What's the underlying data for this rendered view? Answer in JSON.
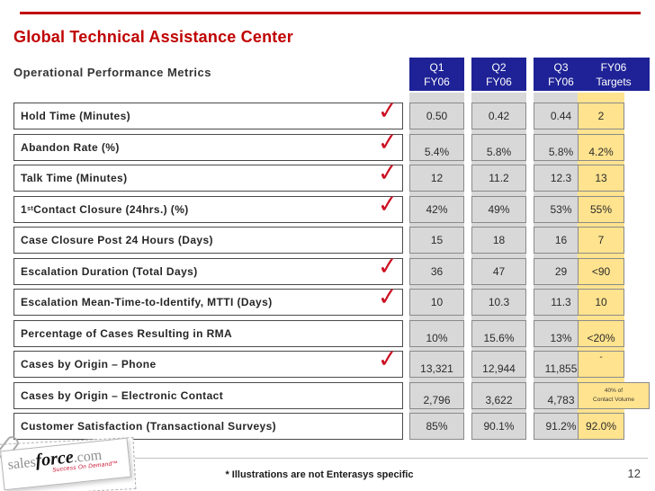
{
  "slide": {
    "title": "Global Technical Assistance Center",
    "table_title": "Operational Performance Metrics"
  },
  "table": {
    "check_glyph": "✓",
    "columns": [
      {
        "line1": "Q1",
        "line2": "FY06"
      },
      {
        "line1": "Q2",
        "line2": "FY06"
      },
      {
        "line1": "Q3",
        "line2": "FY06"
      },
      {
        "line1": "FY06",
        "line2": "Targets"
      }
    ],
    "rows": [
      {
        "label": "Hold Time (Minutes)",
        "checked": true,
        "values": [
          "0.50",
          "0.42",
          "0.44",
          "2"
        ]
      },
      {
        "label": "Abandon Rate (%)",
        "checked": true,
        "valign": "bottom",
        "values": [
          "5.4%",
          "5.8%",
          "5.8%",
          "4.2%"
        ]
      },
      {
        "label": "Talk Time (Minutes)",
        "checked": true,
        "values": [
          "12",
          "11.2",
          "12.3",
          "13"
        ]
      },
      {
        "label_pre": "1",
        "label_sup": "st",
        "label_post": " Contact Closure (24hrs.) (%)",
        "checked": true,
        "values": [
          "42%",
          "49%",
          "53%",
          "55%"
        ]
      },
      {
        "label": "Case Closure Post 24 Hours (Days)",
        "checked": false,
        "values": [
          "15",
          "18",
          "16",
          "7"
        ]
      },
      {
        "label": "Escalation Duration (Total Days)",
        "checked": true,
        "values": [
          "36",
          "47",
          "29",
          "<90"
        ]
      },
      {
        "label": "Escalation Mean-Time-to-Identify, MTTI (Days)",
        "checked": true,
        "values": [
          "10",
          "10.3",
          "11.3",
          "10"
        ]
      },
      {
        "label": "Percentage of Cases Resulting in RMA",
        "checked": false,
        "valign": "bottom",
        "values": [
          "10%",
          "15.6%",
          "13%",
          "<20%"
        ]
      },
      {
        "label": "Cases by Origin – Phone",
        "checked": true,
        "valign": "bottom",
        "target_valign": "top",
        "values": [
          "13,321",
          "12,944",
          "11,855",
          "-"
        ]
      },
      {
        "label": "Cases by Origin – Electronic Contact",
        "checked": false,
        "valign": "bottom",
        "target_wide": true,
        "values": [
          "2,796",
          "3,622",
          "4,783",
          "40% of|Contact Volume"
        ]
      },
      {
        "label": "Customer Satisfaction (Transactional Surveys)",
        "checked": false,
        "values": [
          "85%",
          "90.1%",
          "91.2%",
          "92.0%"
        ]
      }
    ]
  },
  "footer": {
    "disclaimer": "* Illustrations are not Enterasys specific",
    "page_number": "12"
  },
  "logo": {
    "word_sales": "sales",
    "word_force": "force",
    "word_com": ".com",
    "tagline": "Success On Demand™"
  },
  "colors": {
    "accent_red": "#C00000",
    "header_blue": "#1E2296",
    "column_gray": "#D8D8D8",
    "target_yellow": "#FFE38E",
    "check_red": "#CC1122"
  }
}
